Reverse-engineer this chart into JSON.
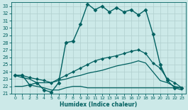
{
  "xlabel": "Humidex (Indice chaleur)",
  "bg_color": "#cce9e8",
  "grid_color": "#b0cece",
  "line_color": "#006060",
  "xlim": [
    -0.5,
    23.5
  ],
  "ylim": [
    21,
    33.5
  ],
  "yticks": [
    21,
    22,
    23,
    24,
    25,
    26,
    27,
    28,
    29,
    30,
    31,
    32,
    33
  ],
  "xticks": [
    0,
    1,
    2,
    3,
    4,
    5,
    6,
    7,
    8,
    9,
    10,
    11,
    12,
    13,
    14,
    15,
    16,
    17,
    18,
    19,
    20,
    21,
    22,
    23
  ],
  "series": [
    {
      "x": [
        0,
        1,
        2,
        3,
        4,
        5,
        6,
        7,
        8,
        9,
        10,
        11,
        12,
        13,
        14,
        15,
        16,
        17,
        18,
        19,
        20,
        21,
        22,
        23
      ],
      "y": [
        23.5,
        23.5,
        22.2,
        22.5,
        21.5,
        21.2,
        22.5,
        28.0,
        28.2,
        30.5,
        33.3,
        32.5,
        33.0,
        32.2,
        32.8,
        32.2,
        32.5,
        31.8,
        32.5,
        29.2,
        25.0,
        22.8,
        21.8,
        21.8
      ],
      "marker": "D",
      "markersize": 2.5,
      "linewidth": 1.0
    },
    {
      "x": [
        0,
        1,
        2,
        3,
        4,
        5,
        6,
        7,
        8,
        9,
        10,
        11,
        12,
        13,
        14,
        15,
        16,
        17,
        18,
        19,
        20,
        21,
        22,
        23
      ],
      "y": [
        22.0,
        22.0,
        22.2,
        22.0,
        21.8,
        21.5,
        21.5,
        21.8,
        22.0,
        22.0,
        21.8,
        21.8,
        21.8,
        21.8,
        21.8,
        21.8,
        21.8,
        21.8,
        21.8,
        21.8,
        21.8,
        21.8,
        21.8,
        21.5
      ],
      "marker": null,
      "markersize": 0,
      "linewidth": 0.9
    },
    {
      "x": [
        0,
        1,
        2,
        3,
        4,
        5,
        6,
        7,
        8,
        9,
        10,
        11,
        12,
        13,
        14,
        15,
        16,
        17,
        18,
        19,
        20,
        21,
        22,
        23
      ],
      "y": [
        23.5,
        23.2,
        23.0,
        22.5,
        22.5,
        22.5,
        22.8,
        23.0,
        23.3,
        23.5,
        23.8,
        24.0,
        24.2,
        24.5,
        24.8,
        25.0,
        25.2,
        25.5,
        25.2,
        24.0,
        22.8,
        22.5,
        22.0,
        21.8
      ],
      "marker": null,
      "markersize": 0,
      "linewidth": 0.9
    },
    {
      "x": [
        0,
        1,
        2,
        3,
        4,
        5,
        6,
        7,
        8,
        9,
        10,
        11,
        12,
        13,
        14,
        15,
        16,
        17,
        18,
        19,
        20,
        21,
        22,
        23
      ],
      "y": [
        23.5,
        23.5,
        23.2,
        23.0,
        22.8,
        22.5,
        23.0,
        23.5,
        24.0,
        24.5,
        25.0,
        25.5,
        25.8,
        26.0,
        26.2,
        26.5,
        26.8,
        27.0,
        26.5,
        25.2,
        24.5,
        23.0,
        22.5,
        21.8
      ],
      "marker": "D",
      "markersize": 2.0,
      "linewidth": 0.9
    }
  ]
}
